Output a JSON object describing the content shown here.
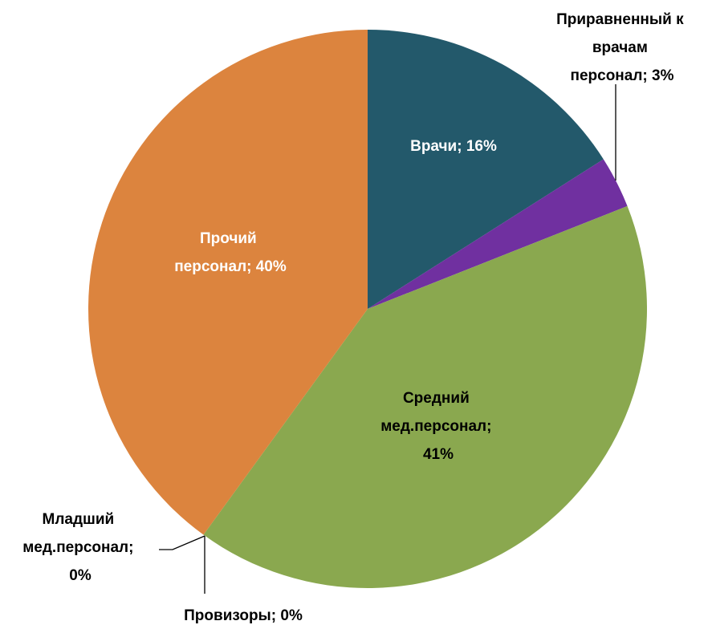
{
  "chart_data": {
    "type": "pie",
    "values": [
      16,
      3,
      41,
      0,
      0,
      40
    ],
    "value_labels": [
      "Врачи; 16%",
      "Приравненный к врачам персонал; 3%",
      "Средний мед.персонал; 41%",
      "Младший мед.персонал; 0%",
      "Провизоры; 0%",
      "Прочий персонал; 40%"
    ],
    "colors": [
      "#23596b",
      "#7030a0",
      "#8aa84f",
      "#4f81bd",
      "#c0504d",
      "#dc843e"
    ],
    "label_colors": [
      "#ffffff",
      "#000000",
      "#000000",
      "#000000",
      "#000000",
      "#ffffff"
    ]
  }
}
